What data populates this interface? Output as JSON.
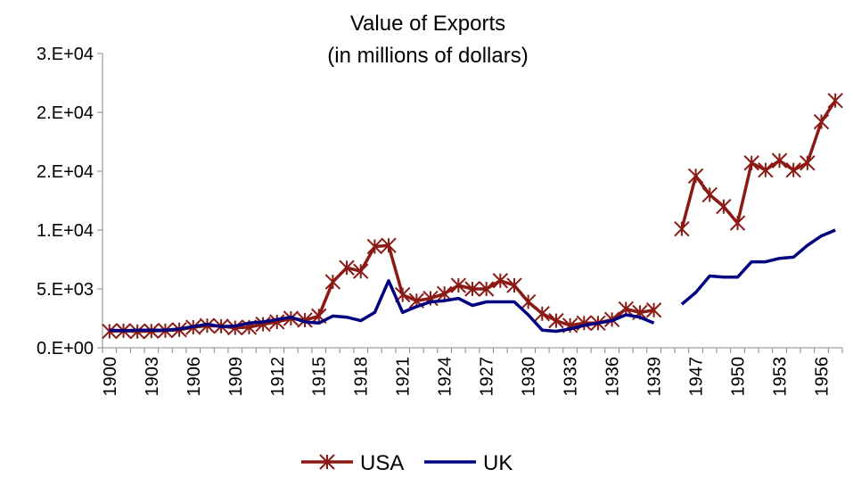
{
  "chart_data": {
    "type": "line",
    "title": "Value of Exports",
    "subtitle": "(in millions of dollars)",
    "xlabel": "",
    "ylabel": "",
    "ylim": [
      0,
      25000
    ],
    "yticks": [
      0,
      5000,
      10000,
      15000,
      20000,
      25000
    ],
    "ytick_labels": [
      "0.E+00",
      "5.E+03",
      "1.E+04",
      "2.E+04",
      "2.E+04",
      "3.E+04"
    ],
    "grid": false,
    "legend": "bottom",
    "categories": [
      1900,
      1901,
      1902,
      1903,
      1904,
      1905,
      1906,
      1907,
      1908,
      1909,
      1910,
      1911,
      1912,
      1913,
      1914,
      1915,
      1916,
      1917,
      1918,
      1919,
      1920,
      1921,
      1922,
      1923,
      1924,
      1925,
      1926,
      1927,
      1928,
      1929,
      1930,
      1931,
      1932,
      1933,
      1934,
      1935,
      1936,
      1937,
      1938,
      1939,
      null,
      1946,
      1947,
      1948,
      1949,
      1950,
      1951,
      1952,
      1953,
      1954,
      1955,
      1956,
      1957
    ],
    "xtick_labels": [
      "1900",
      "1903",
      "1906",
      "1909",
      "1912",
      "1915",
      "1918",
      "1921",
      "1924",
      "1927",
      "1930",
      "1933",
      "1936",
      "1939",
      "1947",
      "1950",
      "1953",
      "1956"
    ],
    "series": [
      {
        "name": "USA",
        "color": "#8b1a14",
        "marker": "asterisk",
        "values": [
          1400,
          1450,
          1380,
          1420,
          1460,
          1530,
          1740,
          1880,
          1830,
          1700,
          1750,
          2000,
          2200,
          2500,
          2350,
          2700,
          5600,
          6800,
          6500,
          8600,
          8700,
          4500,
          4000,
          4200,
          4600,
          5300,
          5000,
          5000,
          5700,
          5300,
          3900,
          2900,
          2300,
          1900,
          2100,
          2100,
          2400,
          3300,
          3000,
          3200,
          null,
          10100,
          14600,
          13000,
          12000,
          10600,
          15700,
          15100,
          15900,
          15100,
          15700,
          19200,
          21000
        ]
      },
      {
        "name": "UK",
        "color": "#000080",
        "marker": "none",
        "values": [
          1500,
          1450,
          1500,
          1500,
          1500,
          1600,
          1800,
          2000,
          1800,
          1850,
          2100,
          2200,
          2400,
          2600,
          2200,
          2100,
          2700,
          2600,
          2300,
          3000,
          5700,
          3000,
          3500,
          3900,
          4000,
          4200,
          3600,
          3900,
          3900,
          3900,
          2800,
          1500,
          1400,
          1600,
          1900,
          2100,
          2300,
          2800,
          2600,
          2100,
          null,
          3700,
          4700,
          6100,
          6000,
          6000,
          7300,
          7300,
          7600,
          7700,
          8700,
          9500,
          10000
        ]
      }
    ]
  }
}
